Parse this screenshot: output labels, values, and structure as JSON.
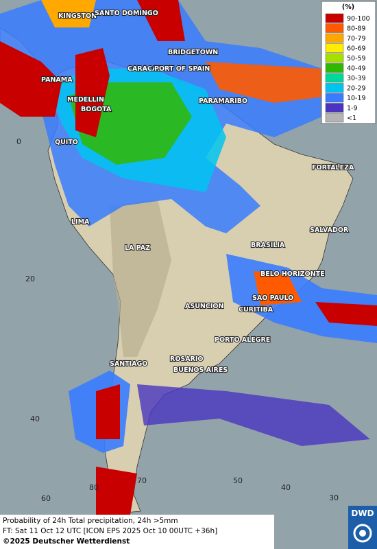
{
  "legend": {
    "title": "(%)",
    "items": [
      {
        "label": "90-100",
        "color": "#c80000"
      },
      {
        "label": "80-89",
        "color": "#ff5a00"
      },
      {
        "label": "70-79",
        "color": "#ffa800"
      },
      {
        "label": "60-69",
        "color": "#ffee00"
      },
      {
        "label": "50-59",
        "color": "#a6e000"
      },
      {
        "label": "40-49",
        "color": "#30b800"
      },
      {
        "label": "30-39",
        "color": "#00d89a"
      },
      {
        "label": "20-29",
        "color": "#00c4f0"
      },
      {
        "label": "10-19",
        "color": "#3a7cff"
      },
      {
        "label": "1-9",
        "color": "#4a34c0"
      },
      {
        "label": "<1",
        "color": "#b4b4b4"
      }
    ]
  },
  "cities": [
    "KINGSTON",
    "SANTO DOMINGO",
    "BRIDGETOWN",
    "CARACAS",
    "PORT OF SPAIN",
    "PANAMA",
    "MEDELLIN",
    "BOGOTA",
    "PARAMARIBO",
    "QUITO",
    "FORTALEZA",
    "LIMA",
    "SALVADOR",
    "LA PAZ",
    "BRASILIA",
    "BELO HORIZONTE",
    "SAO PAULO",
    "ASUNCION",
    "CURITIBA",
    "PORTO ALEGRE",
    "ROSARIO",
    "BUENOS AIRES",
    "SANTIAGO"
  ],
  "grid_labels": [
    "0",
    "20",
    "40",
    "60",
    "80",
    "70",
    "50",
    "40",
    "30"
  ],
  "footer": {
    "line1": "Probability of 24h Total precipitation, 24h >5mm",
    "line2": "FT: Sat 11 Oct 12 UTC [ICON EPS 2025 Oct 10 00UTC +36h]",
    "copyright": "©2025 Deutscher Wetterdienst"
  },
  "logo": "DWD"
}
